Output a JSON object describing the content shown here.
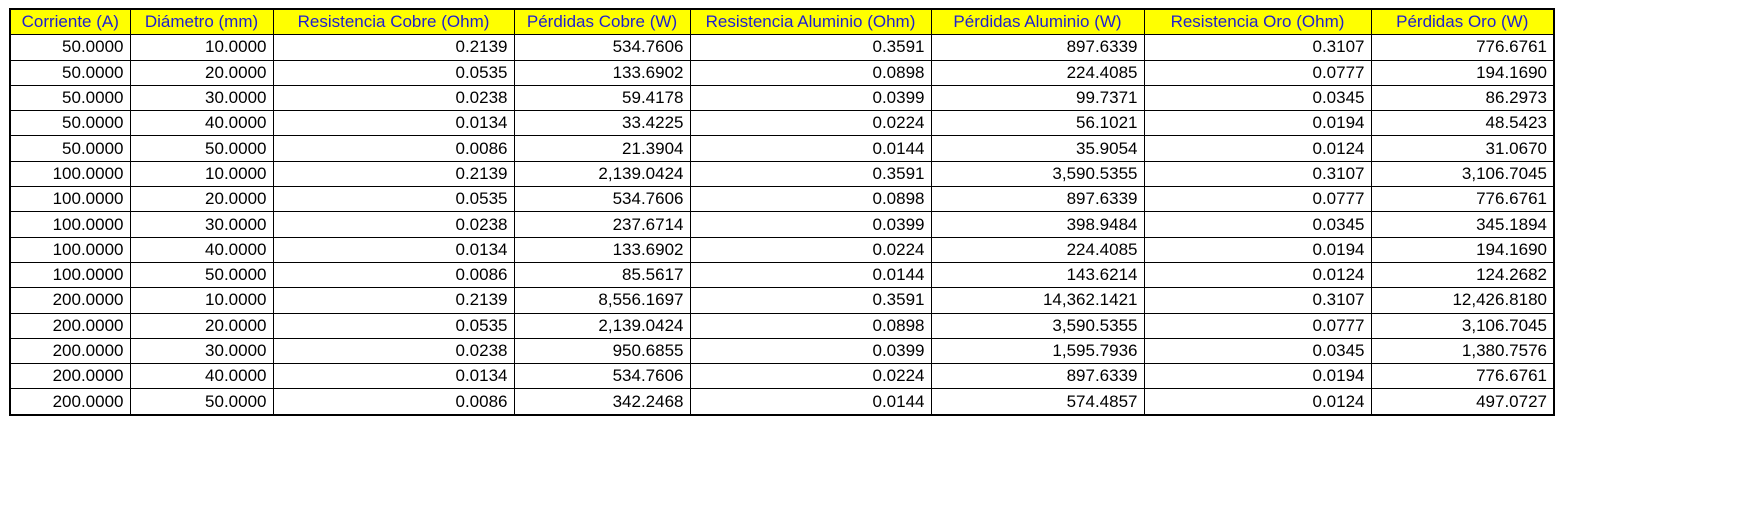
{
  "table": {
    "headers": [
      "Corriente (A)",
      "Diámetro (mm)",
      "Resistencia Cobre (Ohm)",
      "Pérdidas Cobre (W)",
      "Resistencia Aluminio (Ohm)",
      "Pérdidas Aluminio (W)",
      "Resistencia Oro (Ohm)",
      "Pérdidas Oro (W)"
    ],
    "header_background": "#ffff00",
    "header_text_color": "#1f1fd0",
    "rows": [
      [
        "50.0000",
        "10.0000",
        "0.2139",
        "534.7606",
        "0.3591",
        "897.6339",
        "0.3107",
        "776.6761"
      ],
      [
        "50.0000",
        "20.0000",
        "0.0535",
        "133.6902",
        "0.0898",
        "224.4085",
        "0.0777",
        "194.1690"
      ],
      [
        "50.0000",
        "30.0000",
        "0.0238",
        "59.4178",
        "0.0399",
        "99.7371",
        "0.0345",
        "86.2973"
      ],
      [
        "50.0000",
        "40.0000",
        "0.0134",
        "33.4225",
        "0.0224",
        "56.1021",
        "0.0194",
        "48.5423"
      ],
      [
        "50.0000",
        "50.0000",
        "0.0086",
        "21.3904",
        "0.0144",
        "35.9054",
        "0.0124",
        "31.0670"
      ],
      [
        "100.0000",
        "10.0000",
        "0.2139",
        "2,139.0424",
        "0.3591",
        "3,590.5355",
        "0.3107",
        "3,106.7045"
      ],
      [
        "100.0000",
        "20.0000",
        "0.0535",
        "534.7606",
        "0.0898",
        "897.6339",
        "0.0777",
        "776.6761"
      ],
      [
        "100.0000",
        "30.0000",
        "0.0238",
        "237.6714",
        "0.0399",
        "398.9484",
        "0.0345",
        "345.1894"
      ],
      [
        "100.0000",
        "40.0000",
        "0.0134",
        "133.6902",
        "0.0224",
        "224.4085",
        "0.0194",
        "194.1690"
      ],
      [
        "100.0000",
        "50.0000",
        "0.0086",
        "85.5617",
        "0.0144",
        "143.6214",
        "0.0124",
        "124.2682"
      ],
      [
        "200.0000",
        "10.0000",
        "0.2139",
        "8,556.1697",
        "0.3591",
        "14,362.1421",
        "0.3107",
        "12,426.8180"
      ],
      [
        "200.0000",
        "20.0000",
        "0.0535",
        "2,139.0424",
        "0.0898",
        "3,590.5355",
        "0.0777",
        "3,106.7045"
      ],
      [
        "200.0000",
        "30.0000",
        "0.0238",
        "950.6855",
        "0.0399",
        "1,595.7936",
        "0.0345",
        "1,380.7576"
      ],
      [
        "200.0000",
        "40.0000",
        "0.0134",
        "534.7606",
        "0.0224",
        "897.6339",
        "0.0194",
        "776.6761"
      ],
      [
        "200.0000",
        "50.0000",
        "0.0086",
        "342.2468",
        "0.0144",
        "574.4857",
        "0.0124",
        "497.0727"
      ]
    ]
  }
}
